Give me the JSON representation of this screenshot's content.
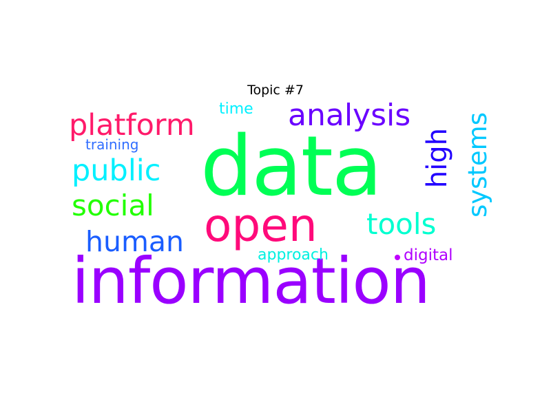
{
  "title": "Topic #7",
  "words": [
    {
      "text": "data",
      "color": "#00ff55"
    },
    {
      "text": "information",
      "color": "#9a00ff"
    },
    {
      "text": "open",
      "color": "#ff0a7a"
    },
    {
      "text": "platform",
      "color": "#ff1a6a"
    },
    {
      "text": "analysis",
      "color": "#6a00ff"
    },
    {
      "text": "public",
      "color": "#00f0ff"
    },
    {
      "text": "social",
      "color": "#22ff00"
    },
    {
      "text": "human",
      "color": "#1a5dff"
    },
    {
      "text": "tools",
      "color": "#00ffd0"
    },
    {
      "text": "high",
      "color": "#2200ff"
    },
    {
      "text": "systems",
      "color": "#00c8ff"
    },
    {
      "text": "time",
      "color": "#00f0ff"
    },
    {
      "text": "training",
      "color": "#2f6dff"
    },
    {
      "text": "approach",
      "color": "#00f0e0"
    },
    {
      "text": "digital",
      "color": "#b000ff"
    }
  ],
  "dot_color": "#c000ff"
}
